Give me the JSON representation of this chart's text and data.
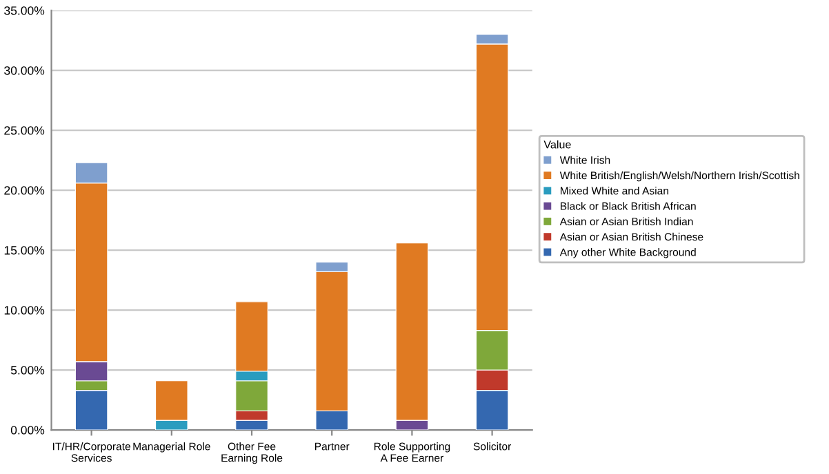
{
  "chart_data": {
    "type": "bar",
    "stacked": true,
    "categories": [
      "IT/HR/Corporate\nServices",
      "Managerial Role",
      "Other Fee\nEarning Role",
      "Partner",
      "Role Supporting\nA Fee Earner",
      "Solicitor"
    ],
    "series": [
      {
        "name": "Any other White Background",
        "color": "#3468b0",
        "values": [
          3.3,
          null,
          0.8,
          1.6,
          null,
          3.3
        ]
      },
      {
        "name": "Asian or Asian British Chinese",
        "color": "#c0392b",
        "values": [
          null,
          null,
          0.8,
          null,
          null,
          1.7
        ]
      },
      {
        "name": "Asian or Asian British Indian",
        "color": "#7fa83a",
        "values": [
          0.8,
          null,
          2.5,
          null,
          null,
          3.3
        ]
      },
      {
        "name": "Black or Black British African",
        "color": "#6a4a93",
        "values": [
          1.6,
          null,
          null,
          null,
          0.8,
          null
        ]
      },
      {
        "name": "Mixed White and Asian",
        "color": "#2a9cbf",
        "values": [
          null,
          0.8,
          0.8,
          null,
          null,
          null
        ]
      },
      {
        "name": "White British/English/Welsh/Northern Irish/Scottish",
        "color": "#e07a22",
        "values": [
          14.9,
          3.3,
          5.8,
          11.6,
          14.8,
          23.9
        ]
      },
      {
        "name": "White Irish",
        "color": "#7f9fce",
        "values": [
          1.7,
          null,
          null,
          0.8,
          null,
          0.8
        ]
      }
    ],
    "ylim": [
      0,
      35
    ],
    "yticks": [
      {
        "value": 0,
        "label": "0.00%"
      },
      {
        "value": 5,
        "label": "5.00%"
      },
      {
        "value": 10,
        "label": "10.00%"
      },
      {
        "value": 15,
        "label": "15.00%"
      },
      {
        "value": 20,
        "label": "20.00%"
      },
      {
        "value": 25,
        "label": "25.00%"
      },
      {
        "value": 30,
        "label": "30.00%"
      },
      {
        "value": 35,
        "label": "35.00%"
      }
    ],
    "grid": "y",
    "legend": "right",
    "legend_title": "Value"
  }
}
